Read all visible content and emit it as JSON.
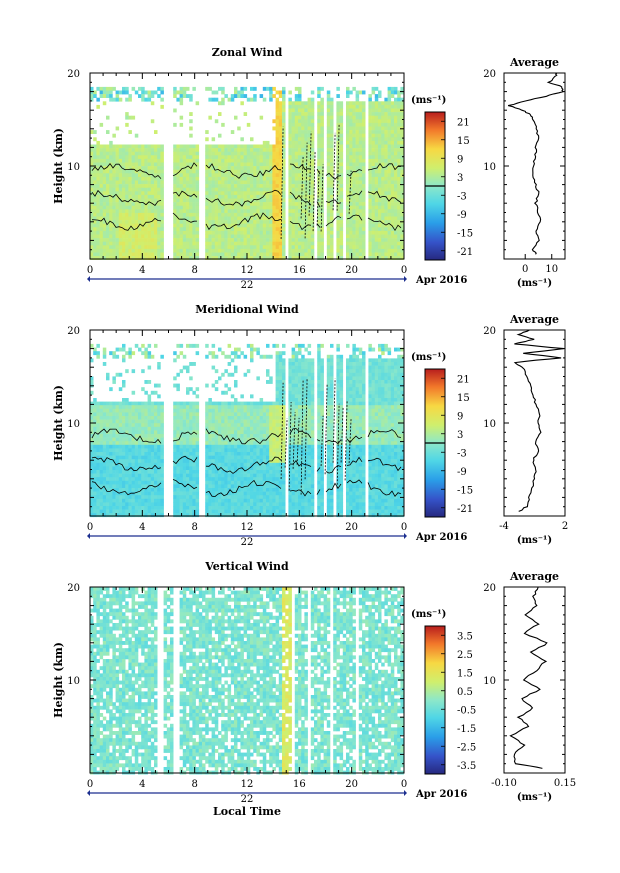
{
  "chart_data": [
    {
      "type": "heatmap",
      "title": "Zonal Wind",
      "ylabel": "Height (km)",
      "ylim": [
        0,
        20
      ],
      "y_ticks": [
        "20",
        "10"
      ],
      "xlim": [
        0,
        24
      ],
      "x_ticks": [
        "0",
        "4",
        "8",
        "12",
        "16",
        "20",
        "0"
      ],
      "date_label": "22",
      "date_suffix": "Apr 2016",
      "colorbar": {
        "unit": "(ms⁻¹)",
        "range": [
          -24,
          24
        ],
        "ticks": [
          "21",
          "15",
          "9",
          "3",
          "-3",
          "-9",
          "-15",
          "-21"
        ],
        "tick_values": [
          21,
          15,
          9,
          3,
          -3,
          -9,
          -15,
          -21
        ]
      },
      "gaps_hours": [
        [
          5.6,
          6.2
        ],
        [
          8.3,
          8.8
        ],
        [
          14.8,
          15.1
        ],
        [
          16.9,
          17.2
        ],
        [
          17.7,
          17.9
        ],
        [
          18.5,
          18.7
        ],
        [
          19.3,
          19.5
        ],
        [
          21.0,
          21.2
        ]
      ],
      "data_top_km": 18.5,
      "average_profile": {
        "title": "Average",
        "xlabel": "(ms⁻¹)",
        "x_ticks": [
          "0",
          "10"
        ],
        "xlim": [
          -8,
          15
        ],
        "heights": [
          0.5,
          1,
          2,
          3,
          4,
          5,
          6,
          7,
          8,
          9,
          10,
          11,
          12,
          13,
          14,
          15,
          15.5,
          16,
          16.5,
          17,
          17.5,
          18,
          18.5,
          19,
          19.5,
          20
        ],
        "values": [
          4,
          3,
          5,
          4,
          6,
          5,
          4,
          5,
          4,
          3,
          3,
          4,
          4,
          5,
          4,
          3,
          2,
          -1,
          -6,
          0,
          8,
          14,
          14,
          9,
          11,
          12
        ]
      }
    },
    {
      "type": "heatmap",
      "title": "Meridional Wind",
      "ylabel": "Height (km)",
      "ylim": [
        0,
        20
      ],
      "y_ticks": [
        "20",
        "10"
      ],
      "xlim": [
        0,
        24
      ],
      "x_ticks": [
        "0",
        "4",
        "8",
        "12",
        "16",
        "20",
        "0"
      ],
      "date_label": "22",
      "date_suffix": "Apr 2016",
      "colorbar": {
        "unit": "(ms⁻¹)",
        "range": [
          -24,
          24
        ],
        "ticks": [
          "21",
          "15",
          "9",
          "3",
          "-3",
          "-9",
          "-15",
          "-21"
        ],
        "tick_values": [
          21,
          15,
          9,
          3,
          -3,
          -9,
          -15,
          -21
        ]
      },
      "gaps_hours": [
        [
          5.6,
          6.2
        ],
        [
          8.3,
          8.8
        ],
        [
          14.8,
          15.1
        ],
        [
          16.9,
          17.2
        ],
        [
          17.7,
          17.9
        ],
        [
          18.5,
          18.7
        ],
        [
          19.3,
          19.5
        ],
        [
          21.0,
          21.2
        ]
      ],
      "data_top_km": 18.5,
      "average_profile": {
        "title": "Average",
        "xlabel": "(ms⁻¹)",
        "x_ticks": [
          "-4",
          "2"
        ],
        "xlim": [
          -4,
          2
        ],
        "heights": [
          0.5,
          1,
          2,
          3,
          4,
          5,
          6,
          7,
          8,
          9,
          10,
          11,
          12,
          13,
          14,
          15,
          16,
          16.5,
          17,
          17.5,
          18,
          18.5,
          19,
          19.5,
          20
        ],
        "values": [
          -2.5,
          -1.8,
          -1.5,
          -1.2,
          -1.0,
          -0.8,
          -1.1,
          -0.6,
          -0.9,
          -0.4,
          -0.7,
          -0.5,
          -0.9,
          -1.1,
          -1.4,
          -1.8,
          -2.2,
          -3.0,
          1.5,
          -2.0,
          1.8,
          -3.0,
          -1.0,
          -2.5,
          -1.5
        ]
      }
    },
    {
      "type": "heatmap",
      "title": "Vertical Wind",
      "ylabel": "Height (km)",
      "xlabel": "Local Time",
      "ylim": [
        0,
        20
      ],
      "y_ticks": [
        "20",
        "10"
      ],
      "xlim": [
        0,
        24
      ],
      "x_ticks": [
        "0",
        "4",
        "8",
        "12",
        "16",
        "20",
        "0"
      ],
      "date_label": "22",
      "date_suffix": "Apr 2016",
      "colorbar": {
        "unit": "(ms⁻¹)",
        "range": [
          -4,
          4
        ],
        "ticks": [
          "3.5",
          "2.5",
          "1.5",
          "0.5",
          "-0.5",
          "-1.5",
          "-2.5",
          "-3.5"
        ],
        "tick_values": [
          3.5,
          2.5,
          1.5,
          0.5,
          -0.5,
          -1.5,
          -2.5,
          -3.5
        ]
      },
      "gaps_hours": [
        [
          5.0,
          5.4
        ],
        [
          6.3,
          6.7
        ],
        [
          8.1,
          8.3
        ],
        [
          15.2,
          15.6
        ],
        [
          16.6,
          16.8
        ],
        [
          17.4,
          17.6
        ],
        [
          18.2,
          18.4
        ],
        [
          19.1,
          19.3
        ],
        [
          20.3,
          20.5
        ]
      ],
      "data_top_km": 20,
      "average_profile": {
        "title": "Average",
        "xlabel": "(ms⁻¹)",
        "x_ticks": [
          "-0.10",
          "0.15"
        ],
        "xlim": [
          -0.1,
          0.15
        ],
        "heights": [
          0.5,
          1,
          2,
          3,
          4,
          5,
          6,
          7,
          8,
          9,
          10,
          11,
          12,
          13,
          14,
          15,
          16,
          17,
          18,
          19,
          20
        ],
        "values": [
          0.06,
          -0.05,
          -0.06,
          -0.02,
          -0.07,
          0.0,
          -0.04,
          0.02,
          -0.03,
          0.05,
          -0.02,
          0.03,
          0.07,
          0.01,
          0.08,
          -0.02,
          0.04,
          -0.01,
          0.03,
          0.02,
          0.04
        ]
      }
    }
  ]
}
